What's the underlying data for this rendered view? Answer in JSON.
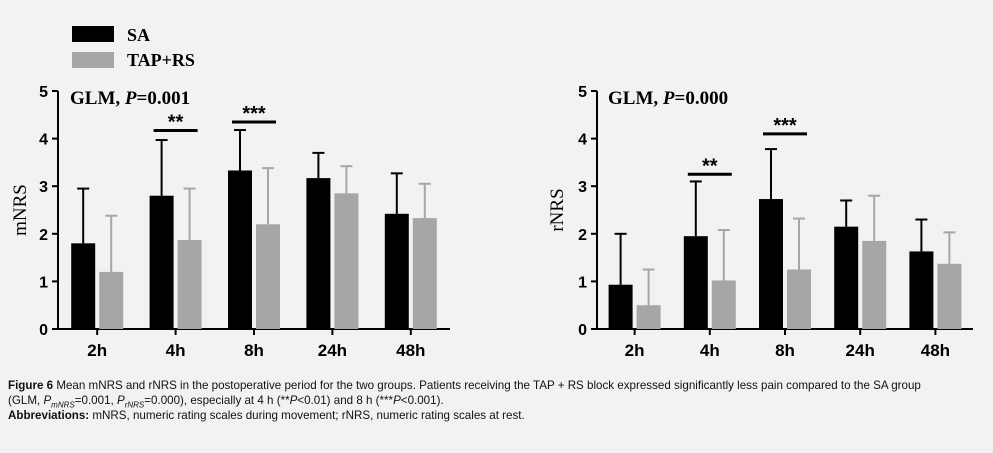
{
  "legend": [
    {
      "label": "SA",
      "color": "#000000"
    },
    {
      "label": "TAP+RS",
      "color": "#a6a6a6"
    }
  ],
  "chart_data": [
    {
      "type": "bar",
      "ylabel": "mNRS",
      "ylim": [
        0,
        5
      ],
      "yticks": [
        "0",
        "1",
        "2",
        "3",
        "4",
        "5"
      ],
      "categories": [
        "2h",
        "4h",
        "8h",
        "24h",
        "48h"
      ],
      "annotation": {
        "glm_prefix": "GLM, ",
        "glm_p": "P",
        "glm_value": "=0.001"
      },
      "series": [
        {
          "name": "SA",
          "color": "#000000",
          "values": [
            1.8,
            2.8,
            3.33,
            3.17,
            2.42
          ],
          "err_upper": [
            2.95,
            3.97,
            4.18,
            3.7,
            3.27
          ]
        },
        {
          "name": "TAP+RS",
          "color": "#a6a6a6",
          "values": [
            1.2,
            1.87,
            2.2,
            2.85,
            2.33
          ],
          "err_upper": [
            2.38,
            2.95,
            3.38,
            3.42,
            3.05
          ]
        }
      ],
      "significance": [
        {
          "category_index": 1,
          "label": "**",
          "y": 4.17
        },
        {
          "category_index": 2,
          "label": "***",
          "y": 4.35
        }
      ]
    },
    {
      "type": "bar",
      "ylabel": "rNRS",
      "ylim": [
        0,
        5
      ],
      "yticks": [
        "0",
        "1",
        "2",
        "3",
        "4",
        "5"
      ],
      "categories": [
        "2h",
        "4h",
        "8h",
        "24h",
        "48h"
      ],
      "annotation": {
        "glm_prefix": "GLM, ",
        "glm_p": "P",
        "glm_value": "=0.000"
      },
      "series": [
        {
          "name": "SA",
          "color": "#000000",
          "values": [
            0.93,
            1.95,
            2.73,
            2.15,
            1.63
          ],
          "err_upper": [
            2.0,
            3.1,
            3.78,
            2.7,
            2.3
          ]
        },
        {
          "name": "TAP+RS",
          "color": "#a6a6a6",
          "values": [
            0.5,
            1.02,
            1.25,
            1.85,
            1.37
          ],
          "err_upper": [
            1.25,
            2.08,
            2.32,
            2.8,
            2.03
          ]
        }
      ],
      "significance": [
        {
          "category_index": 1,
          "label": "**",
          "y": 3.25
        },
        {
          "category_index": 2,
          "label": "***",
          "y": 4.1
        }
      ]
    }
  ],
  "caption": {
    "figure_label": "Figure 6",
    "text_1": " Mean mNRS and rNRS in the postoperative period for the two groups. Patients receiving the TAP + RS block expressed significantly less pain compared to the SA group",
    "text_2a": "(GLM, ",
    "p": "P",
    "sub_m": "mNRS",
    "text_2b": "=0.001, ",
    "sub_r": "rNRS",
    "text_2c": "=0.000), especially at 4 h (**",
    "text_2d": "<0.01) and 8 h (***",
    "text_2e": "<0.001).",
    "abbr_label": "Abbreviations:",
    "abbr_text": " mNRS, numeric rating scales during movement; rNRS, numeric rating scales at rest."
  }
}
